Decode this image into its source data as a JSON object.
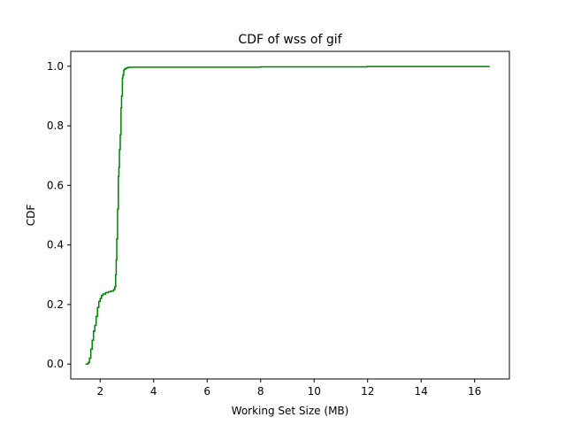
{
  "chart_data": {
    "type": "line",
    "title": "CDF of wss of gif",
    "xlabel": "Working Set Size (MB)",
    "ylabel": "CDF",
    "xlim": [
      0.9,
      17.3
    ],
    "ylim": [
      -0.05,
      1.05
    ],
    "xticks": [
      2,
      4,
      6,
      8,
      10,
      12,
      14,
      16
    ],
    "xtick_labels": [
      "2",
      "4",
      "6",
      "8",
      "10",
      "12",
      "14",
      "16"
    ],
    "yticks": [
      0.0,
      0.2,
      0.4,
      0.6,
      0.8,
      1.0
    ],
    "ytick_labels": [
      "0.0",
      "0.2",
      "0.4",
      "0.6",
      "0.8",
      "1.0"
    ],
    "grid": false,
    "legend": "none",
    "series": [
      {
        "color": "#008000",
        "step": true,
        "x": [
          1.45,
          1.55,
          1.6,
          1.65,
          1.7,
          1.75,
          1.8,
          1.85,
          1.9,
          1.95,
          2.0,
          2.05,
          2.1,
          2.2,
          2.3,
          2.4,
          2.5,
          2.55,
          2.58,
          2.6,
          2.62,
          2.65,
          2.68,
          2.7,
          2.72,
          2.75,
          2.78,
          2.8,
          2.83,
          2.85,
          2.88,
          2.9,
          2.95,
          3.0,
          3.05,
          3.1,
          3.2,
          4.0,
          8.0,
          12.0,
          16.55
        ],
        "y": [
          0.0,
          0.005,
          0.02,
          0.05,
          0.08,
          0.11,
          0.13,
          0.16,
          0.19,
          0.21,
          0.22,
          0.23,
          0.235,
          0.24,
          0.243,
          0.245,
          0.25,
          0.26,
          0.3,
          0.35,
          0.42,
          0.52,
          0.63,
          0.66,
          0.72,
          0.77,
          0.86,
          0.9,
          0.96,
          0.97,
          0.985,
          0.99,
          0.993,
          0.995,
          0.996,
          0.997,
          0.997,
          0.997,
          0.998,
          0.999,
          1.0
        ]
      }
    ]
  }
}
